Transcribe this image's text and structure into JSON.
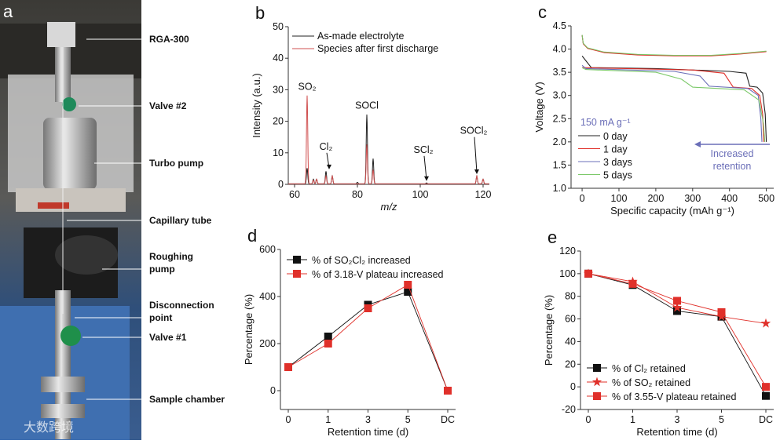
{
  "colors": {
    "black": "#222222",
    "red": "#e0302a",
    "blue": "#6b6fb8",
    "green": "#7cc96a",
    "darkred": "#c04040"
  },
  "panel_a": {
    "letter": "a",
    "labels": [
      "RGA-300",
      "Valve #2",
      "Turbo pump",
      "Capillary tube",
      "Roughing",
      "pump",
      "Disconnection",
      "point",
      "Valve #1",
      "Sample chamber"
    ],
    "watermark": "大数跨境"
  },
  "chart_data": [
    {
      "id": "b",
      "letter": "b",
      "type": "line",
      "xlabel": "m/z",
      "ylabel": "Intensity (a.u.)",
      "xlim": [
        58,
        122
      ],
      "ylim": [
        0,
        50
      ],
      "xticks": [
        60,
        80,
        100,
        120
      ],
      "yticks": [
        0,
        10,
        20,
        30,
        40,
        50
      ],
      "legend": "top-left",
      "series": [
        {
          "name": "As-made electrolyte",
          "color": "#222222",
          "peaks": [
            [
              64,
              5
            ],
            [
              66,
              1.5
            ],
            [
              67,
              1.5
            ],
            [
              70,
              4
            ],
            [
              72,
              2.5
            ],
            [
              80,
              0.5
            ],
            [
              83,
              22
            ],
            [
              85,
              8
            ],
            [
              102,
              0.3
            ],
            [
              118,
              2.5
            ],
            [
              120,
              1.5
            ]
          ]
        },
        {
          "name": "Species after first discharge",
          "color": "#d05050",
          "peaks": [
            [
              64,
              28
            ],
            [
              66,
              1.2
            ],
            [
              67,
              1.5
            ],
            [
              70,
              2.5
            ],
            [
              72,
              2.5
            ],
            [
              83,
              12.5
            ],
            [
              85,
              4.5
            ],
            [
              118,
              2.5
            ],
            [
              120,
              1.5
            ]
          ]
        }
      ],
      "annotations": [
        {
          "text": "SO₂",
          "x": 64,
          "y": 30,
          "arrow": false
        },
        {
          "text": "Cl₂",
          "x": 70,
          "y": 11,
          "arrow": true,
          "tip": 4.5
        },
        {
          "text": "SOCl",
          "x": 83,
          "y": 24,
          "arrow": false
        },
        {
          "text": "SCl₂",
          "x": 101,
          "y": 10,
          "arrow": true,
          "tip": 0.8
        },
        {
          "text": "SOCl₂",
          "x": 117,
          "y": 16,
          "arrow": true,
          "tip": 3
        }
      ]
    },
    {
      "id": "c",
      "letter": "c",
      "type": "line",
      "xlabel": "Specific capacity (mAh g⁻¹)",
      "ylabel": "Voltage (V)",
      "xlim": [
        -30,
        520
      ],
      "ylim": [
        1.0,
        4.5
      ],
      "xticks": [
        0,
        100,
        200,
        300,
        400,
        500
      ],
      "yticks": [
        1.0,
        1.5,
        2.0,
        2.5,
        3.0,
        3.5,
        4.0,
        4.5
      ],
      "legend": "bottom-left",
      "legend_title": "150 mA g⁻¹",
      "annotation": [
        "Increased",
        "retention"
      ],
      "charge": [
        [
          0,
          4.3
        ],
        [
          3,
          4.12
        ],
        [
          15,
          4.02
        ],
        [
          60,
          3.93
        ],
        [
          150,
          3.88
        ],
        [
          250,
          3.86
        ],
        [
          350,
          3.86
        ],
        [
          430,
          3.9
        ],
        [
          500,
          3.95
        ]
      ],
      "series": [
        {
          "name": "0 day",
          "color": "#222222",
          "points": [
            [
              0,
              3.85
            ],
            [
              25,
              3.6
            ],
            [
              200,
              3.58
            ],
            [
              400,
              3.52
            ],
            [
              445,
              3.48
            ],
            [
              455,
              3.2
            ],
            [
              475,
              3.18
            ],
            [
              490,
              3.05
            ],
            [
              497,
              2.6
            ],
            [
              500,
              2.0
            ]
          ]
        },
        {
          "name": "1 day",
          "color": "#e0302a",
          "points": [
            [
              0,
              3.6
            ],
            [
              300,
              3.55
            ],
            [
              385,
              3.48
            ],
            [
              410,
              3.18
            ],
            [
              460,
              3.15
            ],
            [
              482,
              3.0
            ],
            [
              490,
              2.6
            ],
            [
              493,
              2.0
            ]
          ]
        },
        {
          "name": "3 days",
          "color": "#6b6fb8",
          "points": [
            [
              0,
              3.65
            ],
            [
              10,
              3.58
            ],
            [
              250,
              3.52
            ],
            [
              320,
              3.42
            ],
            [
              345,
              3.2
            ],
            [
              450,
              3.15
            ],
            [
              478,
              3.0
            ],
            [
              485,
              2.5
            ],
            [
              488,
              2.0
            ]
          ]
        },
        {
          "name": "5 days",
          "color": "#7cc96a",
          "points": [
            [
              0,
              3.6
            ],
            [
              10,
              3.56
            ],
            [
              200,
              3.5
            ],
            [
              270,
              3.35
            ],
            [
              300,
              3.18
            ],
            [
              440,
              3.12
            ],
            [
              480,
              2.9
            ],
            [
              492,
              2.4
            ],
            [
              496,
              2.0
            ]
          ]
        }
      ]
    },
    {
      "id": "d",
      "letter": "d",
      "type": "line",
      "xlabel": "Retention time (d)",
      "ylabel": "Percentage (%)",
      "categories": [
        "0",
        "1",
        "3",
        "5",
        "DC"
      ],
      "ylim": [
        -80,
        600
      ],
      "yticks": [
        0,
        200,
        400,
        600
      ],
      "legend": "top-left",
      "series": [
        {
          "name": "% of SO₂Cl₂ increased",
          "color": "#111111",
          "marker": "square",
          "values": [
            100,
            230,
            365,
            420,
            0
          ]
        },
        {
          "name": "% of 3.18-V plateau increased",
          "color": "#e0302a",
          "marker": "square",
          "values": [
            100,
            200,
            350,
            450,
            0
          ]
        }
      ]
    },
    {
      "id": "e",
      "letter": "e",
      "type": "line",
      "xlabel": "Retention time (d)",
      "ylabel": "Percentage (%)",
      "categories": [
        "0",
        "1",
        "3",
        "5",
        "DC"
      ],
      "ylim": [
        -20,
        120
      ],
      "yticks": [
        -20,
        0,
        20,
        40,
        60,
        80,
        100,
        120
      ],
      "legend": "bottom-left",
      "series": [
        {
          "name": "% of Cl₂ retained",
          "color": "#111111",
          "marker": "square",
          "values": [
            100,
            90,
            67,
            62,
            -8
          ]
        },
        {
          "name": "% of SO₂ retained",
          "color": "#e0302a",
          "marker": "star",
          "values": [
            100,
            93,
            70,
            62,
            56
          ]
        },
        {
          "name": "% of 3.55-V plateau retained",
          "color": "#e0302a",
          "marker": "square",
          "values": [
            100,
            91,
            76,
            66,
            0
          ]
        }
      ]
    }
  ]
}
